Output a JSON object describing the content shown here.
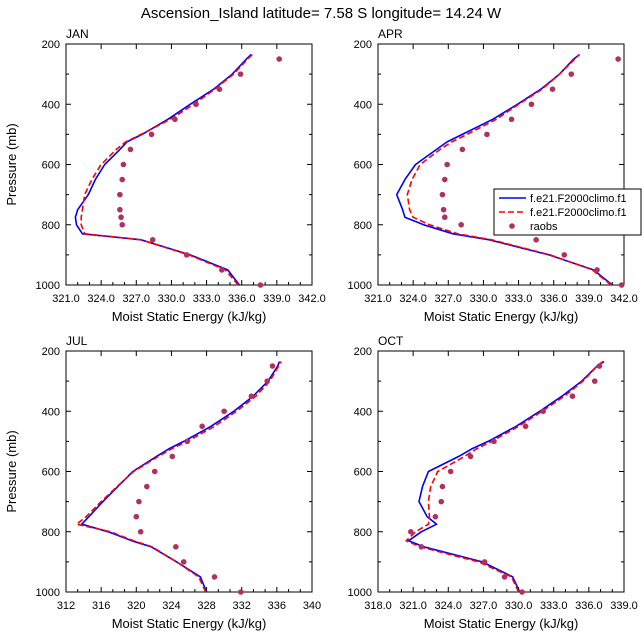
{
  "figure": {
    "title": "Ascension_Island  latitude= 7.58 S longitude= 14.24 W"
  },
  "legend": {
    "entries": [
      {
        "label": "f.e21.F2000climo.f1",
        "color": "#0000ff",
        "style": "solid"
      },
      {
        "label": "f.e21.F2000climo.f1",
        "color": "#ff0000",
        "style": "dashed"
      },
      {
        "label": "raobs",
        "color": "#b03060",
        "style": "dots"
      }
    ]
  },
  "chart_data": [
    {
      "type": "line",
      "panel": "JAN",
      "title": "JAN",
      "xlabel": "Moist Static Energy (kJ/kg)",
      "ylabel": "Pressure (mb)",
      "xlim": [
        321,
        342
      ],
      "ylim": [
        1000,
        200
      ],
      "x_ticks": [
        "321.0",
        "324.0",
        "327.0",
        "330.0",
        "333.0",
        "336.0",
        "339.0",
        "342.0"
      ],
      "y_ticks": [
        "200",
        "400",
        "600",
        "800",
        "1000"
      ],
      "y": [
        1000,
        950,
        900,
        850,
        830,
        800,
        775,
        750,
        700,
        650,
        600,
        550,
        525,
        500,
        450,
        400,
        350,
        300,
        250,
        235
      ],
      "series": [
        {
          "x": [
            335.8,
            334.8,
            331.6,
            327.4,
            322.4,
            321.9,
            321.8,
            322.0,
            322.9,
            323.5,
            324.3,
            325.6,
            326.2,
            327.5,
            329.7,
            331.6,
            333.6,
            335.2,
            336.4,
            336.8
          ]
        },
        {
          "x": [
            335.7,
            334.6,
            331.5,
            327.4,
            322.6,
            322.3,
            322.3,
            322.4,
            322.6,
            323.2,
            324.0,
            325.3,
            326.1,
            327.4,
            329.9,
            331.9,
            333.7,
            335.3,
            336.5,
            336.9
          ]
        },
        {
          "x": [
            337.6,
            334.3,
            331.3,
            328.4,
            null,
            325.8,
            325.7,
            325.6,
            325.6,
            325.8,
            325.9,
            326.5,
            null,
            328.3,
            330.3,
            332.1,
            334.1,
            335.9,
            339.2,
            null
          ]
        }
      ]
    },
    {
      "type": "line",
      "panel": "APR",
      "title": "APR",
      "xlabel": "Moist Static Energy (kJ/kg)",
      "ylabel": "",
      "xlim": [
        321,
        342
      ],
      "ylim": [
        1000,
        200
      ],
      "x_ticks": [
        "321.0",
        "324.0",
        "327.0",
        "330.0",
        "333.0",
        "336.0",
        "339.0",
        "342.0"
      ],
      "y_ticks": [
        "200",
        "400",
        "600",
        "800",
        "1000"
      ],
      "y": [
        1000,
        950,
        900,
        850,
        830,
        800,
        775,
        750,
        700,
        650,
        600,
        550,
        525,
        500,
        450,
        400,
        350,
        300,
        250,
        235
      ],
      "series": [
        {
          "x": [
            341.0,
            339.4,
            335.6,
            330.5,
            327.4,
            324.9,
            323.3,
            323.1,
            322.6,
            323.3,
            324.2,
            326.0,
            326.9,
            328.2,
            330.8,
            332.9,
            334.9,
            336.5,
            337.7,
            338.2
          ]
        },
        {
          "x": [
            340.9,
            339.3,
            335.7,
            330.7,
            327.8,
            325.4,
            324.0,
            323.7,
            323.5,
            323.9,
            324.6,
            326.3,
            327.3,
            328.6,
            331.1,
            333.0,
            335.0,
            336.5,
            337.8,
            338.2
          ]
        },
        {
          "x": [
            341.8,
            339.7,
            336.9,
            334.5,
            null,
            328.1,
            326.7,
            326.6,
            326.5,
            326.7,
            326.9,
            328.2,
            null,
            330.3,
            332.4,
            334.1,
            335.9,
            337.5,
            341.5,
            null
          ]
        }
      ]
    },
    {
      "type": "line",
      "panel": "JUL",
      "title": "JUL",
      "xlabel": "Moist Static Energy (kJ/kg)",
      "ylabel": "Pressure (mb)",
      "xlim": [
        312,
        340
      ],
      "ylim": [
        1000,
        200
      ],
      "x_ticks": [
        "312",
        "316",
        "320",
        "324",
        "328",
        "332",
        "336",
        "340"
      ],
      "y_ticks": [
        "200",
        "400",
        "600",
        "800",
        "1000"
      ],
      "y": [
        1000,
        950,
        900,
        850,
        830,
        800,
        775,
        750,
        700,
        650,
        600,
        550,
        525,
        500,
        450,
        400,
        350,
        300,
        250,
        235
      ],
      "series": [
        {
          "x": [
            328.0,
            327.3,
            324.6,
            321.7,
            319.5,
            316.8,
            313.8,
            314.6,
            316.2,
            317.9,
            319.6,
            322.3,
            323.7,
            325.4,
            328.5,
            331.1,
            333.3,
            335.0,
            336.1,
            336.3
          ]
        },
        {
          "x": [
            327.9,
            327.1,
            324.6,
            321.8,
            319.7,
            317.1,
            313.2,
            314.3,
            316.0,
            317.8,
            319.7,
            322.5,
            324.0,
            325.8,
            328.9,
            331.4,
            333.6,
            335.2,
            336.2,
            336.5
          ]
        },
        {
          "x": [
            331.9,
            328.9,
            325.4,
            324.5,
            null,
            320.5,
            null,
            320.0,
            320.3,
            321.2,
            322.1,
            324.1,
            null,
            325.8,
            327.5,
            330.0,
            333.1,
            334.9,
            335.5,
            null
          ]
        }
      ]
    },
    {
      "type": "line",
      "panel": "OCT",
      "title": "OCT",
      "xlabel": "Moist Static Energy (kJ/kg)",
      "ylabel": "",
      "xlim": [
        318,
        339
      ],
      "ylim": [
        1000,
        200
      ],
      "x_ticks": [
        "318.0",
        "321.0",
        "324.0",
        "327.0",
        "330.0",
        "333.0",
        "336.0",
        "339.0"
      ],
      "y_ticks": [
        "200",
        "400",
        "600",
        "800",
        "1000"
      ],
      "y": [
        1000,
        950,
        900,
        850,
        830,
        800,
        775,
        750,
        700,
        650,
        600,
        550,
        525,
        500,
        450,
        400,
        350,
        300,
        250,
        235
      ],
      "series": [
        {
          "x": [
            330.1,
            329.5,
            326.9,
            321.9,
            320.6,
            321.7,
            323.0,
            322.2,
            321.5,
            321.8,
            322.3,
            324.9,
            326.0,
            327.4,
            329.8,
            331.8,
            333.7,
            335.4,
            336.7,
            337.3
          ]
        },
        {
          "x": [
            330.0,
            329.4,
            326.6,
            321.6,
            320.4,
            321.2,
            322.3,
            322.4,
            322.3,
            322.5,
            323.1,
            325.4,
            326.4,
            327.7,
            330.0,
            332.0,
            333.9,
            335.5,
            336.7,
            337.2
          ]
        },
        {
          "x": [
            330.3,
            328.8,
            327.1,
            321.7,
            null,
            320.8,
            null,
            322.9,
            323.4,
            323.5,
            324.2,
            325.9,
            null,
            327.9,
            330.6,
            332.1,
            334.6,
            336.5,
            336.9,
            null
          ]
        }
      ]
    }
  ]
}
